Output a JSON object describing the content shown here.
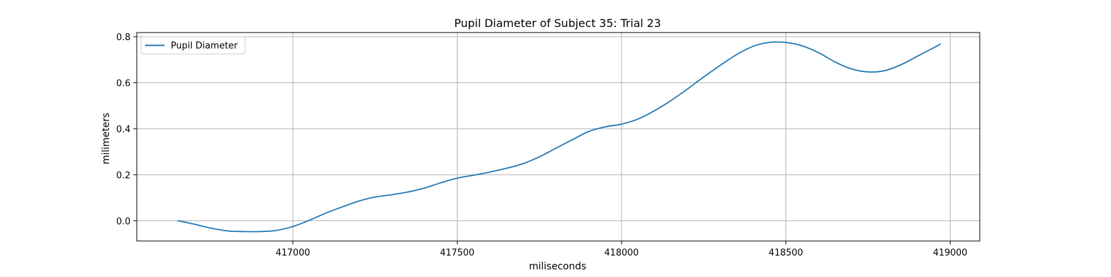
{
  "chart_data": {
    "type": "line",
    "title": "Pupil Diameter of Subject 35: Trial 23",
    "xlabel": "miliseconds",
    "ylabel": "milimeters",
    "xlim": [
      416525,
      419090
    ],
    "ylim": [
      -0.088,
      0.818
    ],
    "x_ticks": [
      417000,
      417500,
      418000,
      418500,
      419000
    ],
    "y_ticks": [
      0.0,
      0.2,
      0.4,
      0.6,
      0.8
    ],
    "x_tick_labels": [
      "417000",
      "417500",
      "418000",
      "418500",
      "419000"
    ],
    "y_tick_labels": [
      "0.0",
      "0.2",
      "0.4",
      "0.6",
      "0.8"
    ],
    "grid": true,
    "legend": {
      "position": "top-left",
      "entries": [
        "Pupil Diameter"
      ]
    },
    "series": [
      {
        "name": "Pupil Diameter",
        "color": "#1f77b4",
        "x": [
          416650,
          416700,
          416750,
          416800,
          416850,
          416900,
          416950,
          417000,
          417050,
          417100,
          417150,
          417200,
          417250,
          417300,
          417350,
          417400,
          417450,
          417500,
          417550,
          417600,
          417650,
          417700,
          417750,
          417800,
          417850,
          417900,
          417950,
          418000,
          418050,
          418100,
          418150,
          418200,
          418250,
          418300,
          418350,
          418400,
          418450,
          418500,
          418550,
          418600,
          418650,
          418700,
          418750,
          418800,
          418850,
          418900,
          418950,
          418970
        ],
        "y": [
          0.0,
          -0.015,
          -0.032,
          -0.044,
          -0.047,
          -0.047,
          -0.042,
          -0.025,
          0.002,
          0.033,
          0.06,
          0.085,
          0.103,
          0.113,
          0.125,
          0.142,
          0.165,
          0.185,
          0.198,
          0.212,
          0.228,
          0.248,
          0.278,
          0.315,
          0.352,
          0.388,
          0.408,
          0.42,
          0.442,
          0.478,
          0.522,
          0.572,
          0.625,
          0.675,
          0.722,
          0.758,
          0.775,
          0.775,
          0.76,
          0.73,
          0.69,
          0.66,
          0.647,
          0.652,
          0.678,
          0.715,
          0.752,
          0.768
        ]
      }
    ]
  }
}
